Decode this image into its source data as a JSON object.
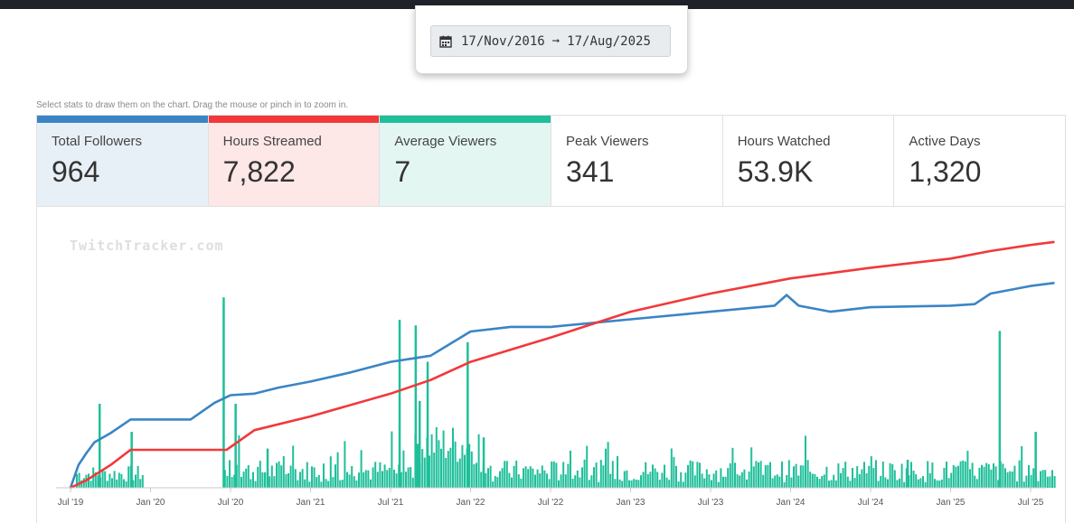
{
  "date_range": {
    "start": "17/Nov/2016",
    "end": "17/Aug/2025",
    "arrow": "➞"
  },
  "hint": "Select stats to draw them on the chart. Drag the mouse or pinch in to zoom in.",
  "watermark": "TwitchTracker.com",
  "stats": [
    {
      "label": "Total Followers",
      "value": "964",
      "color": "#3a85c4",
      "bg": "#e8f0f7"
    },
    {
      "label": "Hours Streamed",
      "value": "7,822",
      "color": "#f2383a",
      "bg": "#fde7e7"
    },
    {
      "label": "Average Viewers",
      "value": "7",
      "color": "#1fbf9a",
      "bg": "#e4f6f1"
    },
    {
      "label": "Peak Viewers",
      "value": "341",
      "color": "",
      "bg": "#ffffff"
    },
    {
      "label": "Hours Watched",
      "value": "53.9K",
      "color": "",
      "bg": "#ffffff"
    },
    {
      "label": "Active Days",
      "value": "1,320",
      "color": "",
      "bg": "#ffffff"
    }
  ],
  "chart_data": {
    "type": "line",
    "x_ticks": [
      "Jul '19",
      "Jan '20",
      "Jul '20",
      "Jan '21",
      "Jul '21",
      "Jan '22",
      "Jul '22",
      "Jan '23",
      "Jul '23",
      "Jan '24",
      "Jul '24",
      "Jan '25",
      "Jul '25"
    ],
    "series": [
      {
        "name": "Total Followers",
        "type": "line",
        "color": "#3a85c4",
        "x": [
          0.0,
          0.1,
          0.2,
          0.3,
          0.5,
          0.75,
          1.0,
          1.5,
          1.8,
          2.0,
          2.3,
          2.6,
          3.0,
          3.5,
          4.0,
          4.5,
          4.75,
          5.0,
          5.5,
          6.0,
          7.0,
          8.0,
          8.8,
          8.95,
          9.1,
          9.5,
          10.0,
          11.0,
          11.3,
          11.5,
          12.0,
          12.3
        ],
        "y": [
          0,
          150,
          230,
          300,
          360,
          450,
          450,
          450,
          560,
          610,
          620,
          660,
          700,
          760,
          830,
          870,
          950,
          1030,
          1060,
          1060,
          1110,
          1160,
          1200,
          1270,
          1200,
          1160,
          1190,
          1200,
          1210,
          1280,
          1330,
          1350
        ]
      },
      {
        "name": "Hours Streamed",
        "type": "line",
        "color": "#f2383a",
        "x": [
          0.0,
          0.2,
          0.5,
          0.75,
          1.0,
          1.5,
          1.95,
          2.3,
          3.0,
          4.0,
          4.5,
          5.0,
          6.0,
          7.0,
          8.0,
          9.0,
          10.0,
          11.0,
          11.5,
          12.0,
          12.3
        ],
        "y": [
          0,
          50,
          150,
          250,
          250,
          250,
          250,
          380,
          470,
          620,
          710,
          830,
          990,
          1160,
          1280,
          1380,
          1450,
          1510,
          1560,
          1600,
          1620
        ]
      },
      {
        "name": "Average Viewers",
        "type": "bar",
        "color": "#1fbf9a",
        "approx_weekly_values": "mostly 2-20, spikes up to ~68 (Jul '20), ~54 (Dec '21), ~51 (Jul '25)"
      }
    ],
    "grid": false,
    "legend": "top"
  }
}
